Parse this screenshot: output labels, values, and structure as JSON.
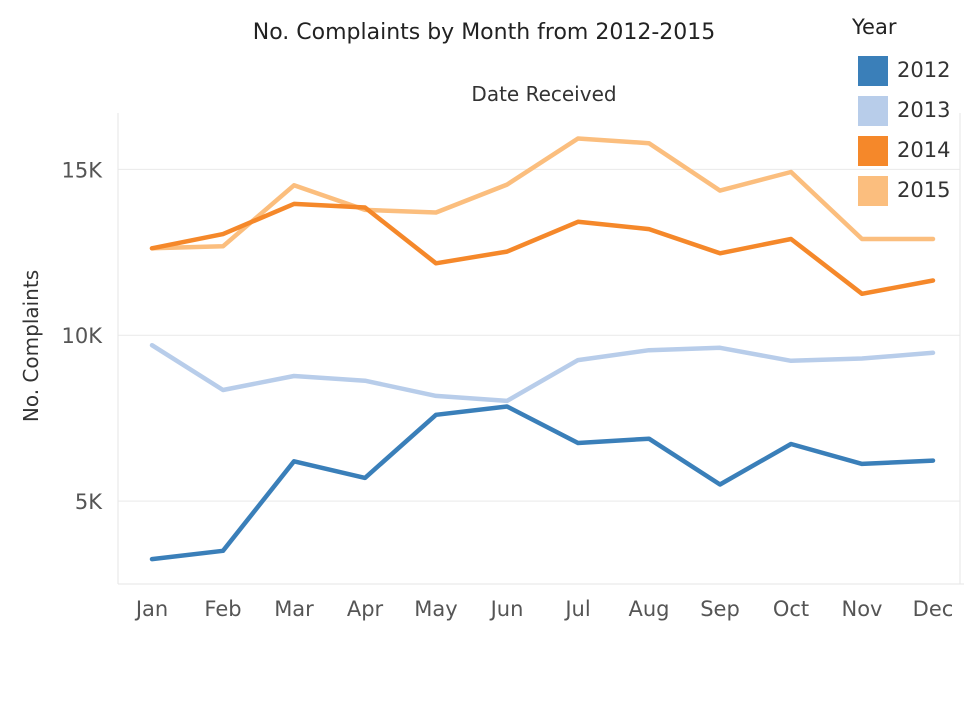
{
  "chart_data": {
    "type": "line",
    "title": "No. Complaints by Month from 2012-2015",
    "xlabel": "Date Received",
    "ylabel": "No. Complaints",
    "categories": [
      "Jan",
      "Feb",
      "Mar",
      "Apr",
      "May",
      "Jun",
      "Jul",
      "Aug",
      "Sep",
      "Oct",
      "Nov",
      "Dec"
    ],
    "ylim": [
      2500,
      16700
    ],
    "yticks": [
      5000,
      10000,
      15000
    ],
    "ytick_labels": [
      "5K",
      "10K",
      "15K"
    ],
    "grid": "horizontal",
    "legend": {
      "title": "Year",
      "position": "top-right"
    },
    "series": [
      {
        "name": "2012",
        "color": "#3a7fb9",
        "values": [
          3250,
          3500,
          6200,
          5700,
          7600,
          7850,
          6750,
          6880,
          5500,
          6720,
          6120,
          6220
        ]
      },
      {
        "name": "2013",
        "color": "#b8cdea",
        "values": [
          9700,
          8350,
          8770,
          8630,
          8170,
          8020,
          9250,
          9550,
          9620,
          9230,
          9300,
          9470
        ]
      },
      {
        "name": "2014",
        "color": "#f5882a",
        "values": [
          12620,
          13050,
          13960,
          13850,
          12170,
          12520,
          13420,
          13200,
          12470,
          12900,
          11250,
          11650
        ]
      },
      {
        "name": "2015",
        "color": "#fbbe7e",
        "values": [
          12620,
          12680,
          14520,
          13780,
          13700,
          14540,
          15930,
          15790,
          14360,
          14920,
          12900,
          12900
        ]
      }
    ]
  }
}
